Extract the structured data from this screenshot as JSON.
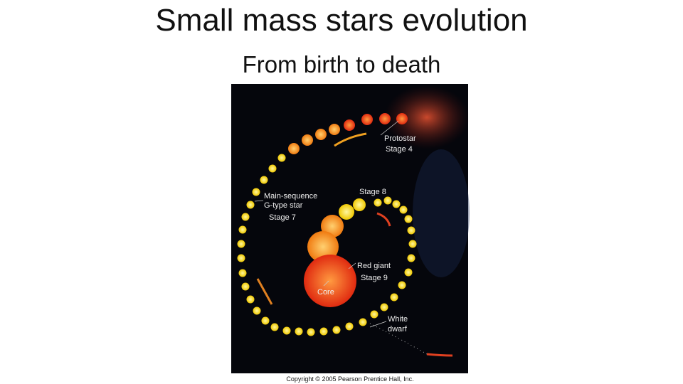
{
  "title": "Small mass stars evolution",
  "subtitle": "From birth to death",
  "figure": {
    "labels": {
      "protostar": "Protostar",
      "stage_4": "Stage 4",
      "main_sequence": "Main-sequence",
      "g_type": "G-type star",
      "stage_7": "Stage 7",
      "stage_8": "Stage 8",
      "red_giant": "Red giant",
      "stage_9": "Stage 9",
      "core": "Core",
      "white": "White",
      "dwarf": "dwarf"
    },
    "copyright": "Copyright © 2005 Pearson Prentice Hall, Inc."
  }
}
